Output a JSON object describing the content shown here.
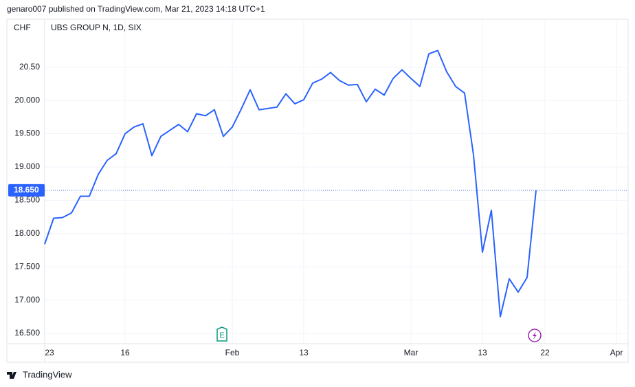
{
  "header": "genaro007 published on TradingView.com, Mar 21, 2023 14:18 UTC+1",
  "footer": "TradingView",
  "chart_data": {
    "type": "line",
    "y_label": "CHF",
    "categories": [
      "23",
      null,
      null,
      null,
      null,
      null,
      null,
      null,
      null,
      "16",
      null,
      null,
      null,
      null,
      null,
      null,
      null,
      null,
      null,
      null,
      null,
      "Feb",
      null,
      null,
      null,
      null,
      null,
      null,
      null,
      "13",
      null,
      null,
      null,
      null,
      null,
      null,
      null,
      null,
      null,
      null,
      null,
      "Mar",
      null,
      null,
      null,
      null,
      null,
      null,
      null,
      "13",
      null,
      null,
      null,
      null,
      null,
      null,
      "22",
      null,
      null,
      null,
      null,
      null,
      null,
      null,
      "Apr"
    ],
    "series": [
      {
        "name": "UBS GROUP N, 1D, SIX",
        "color": "#2962ff",
        "values": [
          17.84,
          18.23,
          18.24,
          18.31,
          18.56,
          18.56,
          18.89,
          19.1,
          19.2,
          19.5,
          19.6,
          19.65,
          19.17,
          19.46,
          19.55,
          19.64,
          19.53,
          19.8,
          19.77,
          19.86,
          19.46,
          19.6,
          19.87,
          20.16,
          19.86,
          19.88,
          19.9,
          20.1,
          19.95,
          20.01,
          20.26,
          20.32,
          20.42,
          20.3,
          20.23,
          20.24,
          19.98,
          20.17,
          20.08,
          20.33,
          20.46,
          20.33,
          20.21,
          20.7,
          20.75,
          20.43,
          20.21,
          20.11,
          19.18,
          17.72,
          18.35,
          16.75,
          17.32,
          17.12,
          17.34,
          18.65,
          null,
          null,
          null,
          null,
          null,
          null,
          null,
          null,
          null
        ]
      }
    ],
    "ylim": [
      16.345,
      21.22
    ],
    "yticks": [
      {
        "value": 16.5,
        "label": "16.500"
      },
      {
        "value": 17,
        "label": "17.000"
      },
      {
        "value": 17.5,
        "label": "17.500"
      },
      {
        "value": 18,
        "label": "18.000"
      },
      {
        "value": 18.5,
        "label": "18.500"
      },
      {
        "value": 19,
        "label": "19.000"
      },
      {
        "value": 19.5,
        "label": "19.500"
      },
      {
        "value": 20,
        "label": "20.000"
      },
      {
        "value": 20.5,
        "label": "20.50"
      }
    ],
    "price_line": {
      "value": 18.65,
      "label": "18.650",
      "color": "#2962ff"
    },
    "grid": true
  }
}
